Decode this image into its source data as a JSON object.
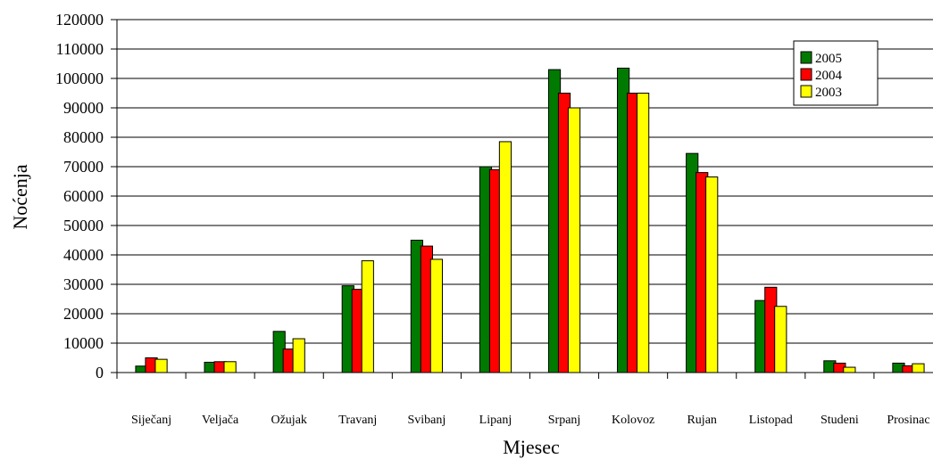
{
  "chart_data": {
    "type": "bar",
    "title": "",
    "xlabel": "Mjesec",
    "ylabel": "Noćenja",
    "ylim": [
      0,
      120000
    ],
    "ytick_step": 10000,
    "grid": "horizontal",
    "legend_position": "top-right",
    "categories": [
      "Siječanj",
      "Veljača",
      "Ožujak",
      "Travanj",
      "Svibanj",
      "Lipanj",
      "Srpanj",
      "Kolovoz",
      "Rujan",
      "Listopad",
      "Studeni",
      "Prosinac"
    ],
    "series": [
      {
        "name": "2005",
        "color": "#007a00",
        "values": [
          2200,
          3500,
          14000,
          29500,
          45000,
          70000,
          103000,
          103500,
          74500,
          24500,
          4000,
          3200
        ]
      },
      {
        "name": "2004",
        "color": "#ff0000",
        "values": [
          5000,
          3700,
          8000,
          28300,
          43000,
          69000,
          95000,
          95000,
          68000,
          29000,
          3200,
          2300
        ]
      },
      {
        "name": "2003",
        "color": "#ffff00",
        "values": [
          4500,
          3700,
          11500,
          38000,
          38500,
          78500,
          90000,
          95000,
          66500,
          22500,
          1800,
          3000
        ]
      }
    ]
  }
}
